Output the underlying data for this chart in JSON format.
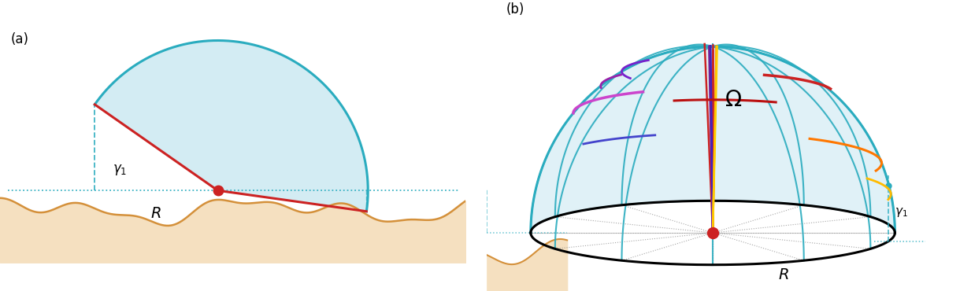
{
  "fig_width": 12.19,
  "fig_height": 3.7,
  "dpi": 100,
  "sky_color": "#cce9f2",
  "sky_edge_color": "#2aacbf",
  "terrain_fill_color": "#f5e0c0",
  "terrain_line_color": "#d4903a",
  "red_color": "#cc2222",
  "dashed_color": "#2aacbf",
  "sphere_color": "#2aacbf"
}
